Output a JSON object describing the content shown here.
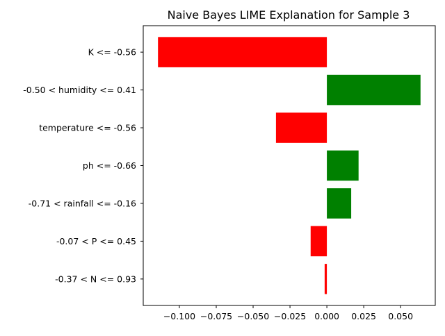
{
  "chart_data": {
    "type": "bar",
    "orientation": "horizontal",
    "title": "Naive Bayes LIME Explanation for Sample 3",
    "xlabel": "",
    "ylabel": "",
    "categories": [
      "K <= -0.56",
      "-0.50 < humidity <= 0.41",
      "temperature <= -0.56",
      "ph <= -0.66",
      "-0.71 < rainfall <= -0.16",
      "-0.07 < P <= 0.45",
      "-0.37 < N <= 0.93"
    ],
    "values": [
      -0.1145,
      0.0635,
      -0.0345,
      0.0215,
      0.0165,
      -0.011,
      -0.0015
    ],
    "xlim": [
      -0.1245,
      0.0735
    ],
    "xticks": [
      -0.1,
      -0.075,
      -0.05,
      -0.025,
      0.0,
      0.025,
      0.05
    ],
    "xtick_labels": [
      "−0.100",
      "−0.075",
      "−0.050",
      "−0.025",
      "0.000",
      "0.025",
      "0.050"
    ],
    "grid": false,
    "legend": "none",
    "colors": {
      "positive": "#008000",
      "negative": "#ff0000",
      "axis": "#000000"
    }
  }
}
